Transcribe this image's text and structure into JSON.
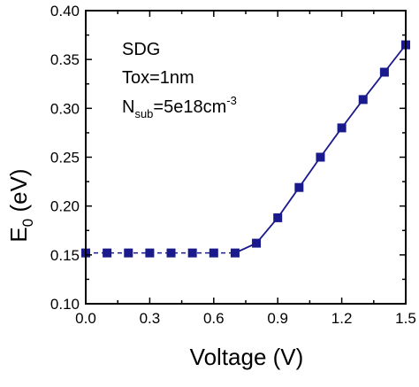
{
  "chart_data": {
    "type": "line",
    "title": "",
    "xlabel": "Voltage (V)",
    "ylabel": {
      "main": "E",
      "sub": "0",
      "unit": " (eV)"
    },
    "xlim": [
      0.0,
      1.5
    ],
    "ylim": [
      0.1,
      0.4
    ],
    "x_ticks": [
      0.0,
      0.3,
      0.6,
      0.9,
      1.2,
      1.5
    ],
    "x_tick_labels": [
      "0.0",
      "0.3",
      "0.6",
      "0.9",
      "1.2",
      "1.5"
    ],
    "y_ticks": [
      0.1,
      0.15,
      0.2,
      0.25,
      0.3,
      0.35,
      0.4
    ],
    "y_tick_labels": [
      "0.10",
      "0.15",
      "0.20",
      "0.25",
      "0.30",
      "0.35",
      "0.40"
    ],
    "grid": false,
    "legend": "none",
    "annotation": {
      "line1": "SDG",
      "line2": "Tox=1nm",
      "line3_main": "N",
      "line3_sub": "sub",
      "line3_rest": "=5e18cm",
      "line3_sup": "-3"
    },
    "series": [
      {
        "color": "#1a1a8c",
        "marker": "square",
        "x": [
          0.0,
          0.1,
          0.2,
          0.3,
          0.4,
          0.5,
          0.6,
          0.7,
          0.8,
          0.9,
          1.0,
          1.1,
          1.2,
          1.3,
          1.4,
          1.5
        ],
        "y": [
          0.152,
          0.152,
          0.152,
          0.152,
          0.152,
          0.152,
          0.152,
          0.152,
          0.162,
          0.188,
          0.219,
          0.25,
          0.28,
          0.309,
          0.337,
          0.365
        ]
      }
    ]
  }
}
